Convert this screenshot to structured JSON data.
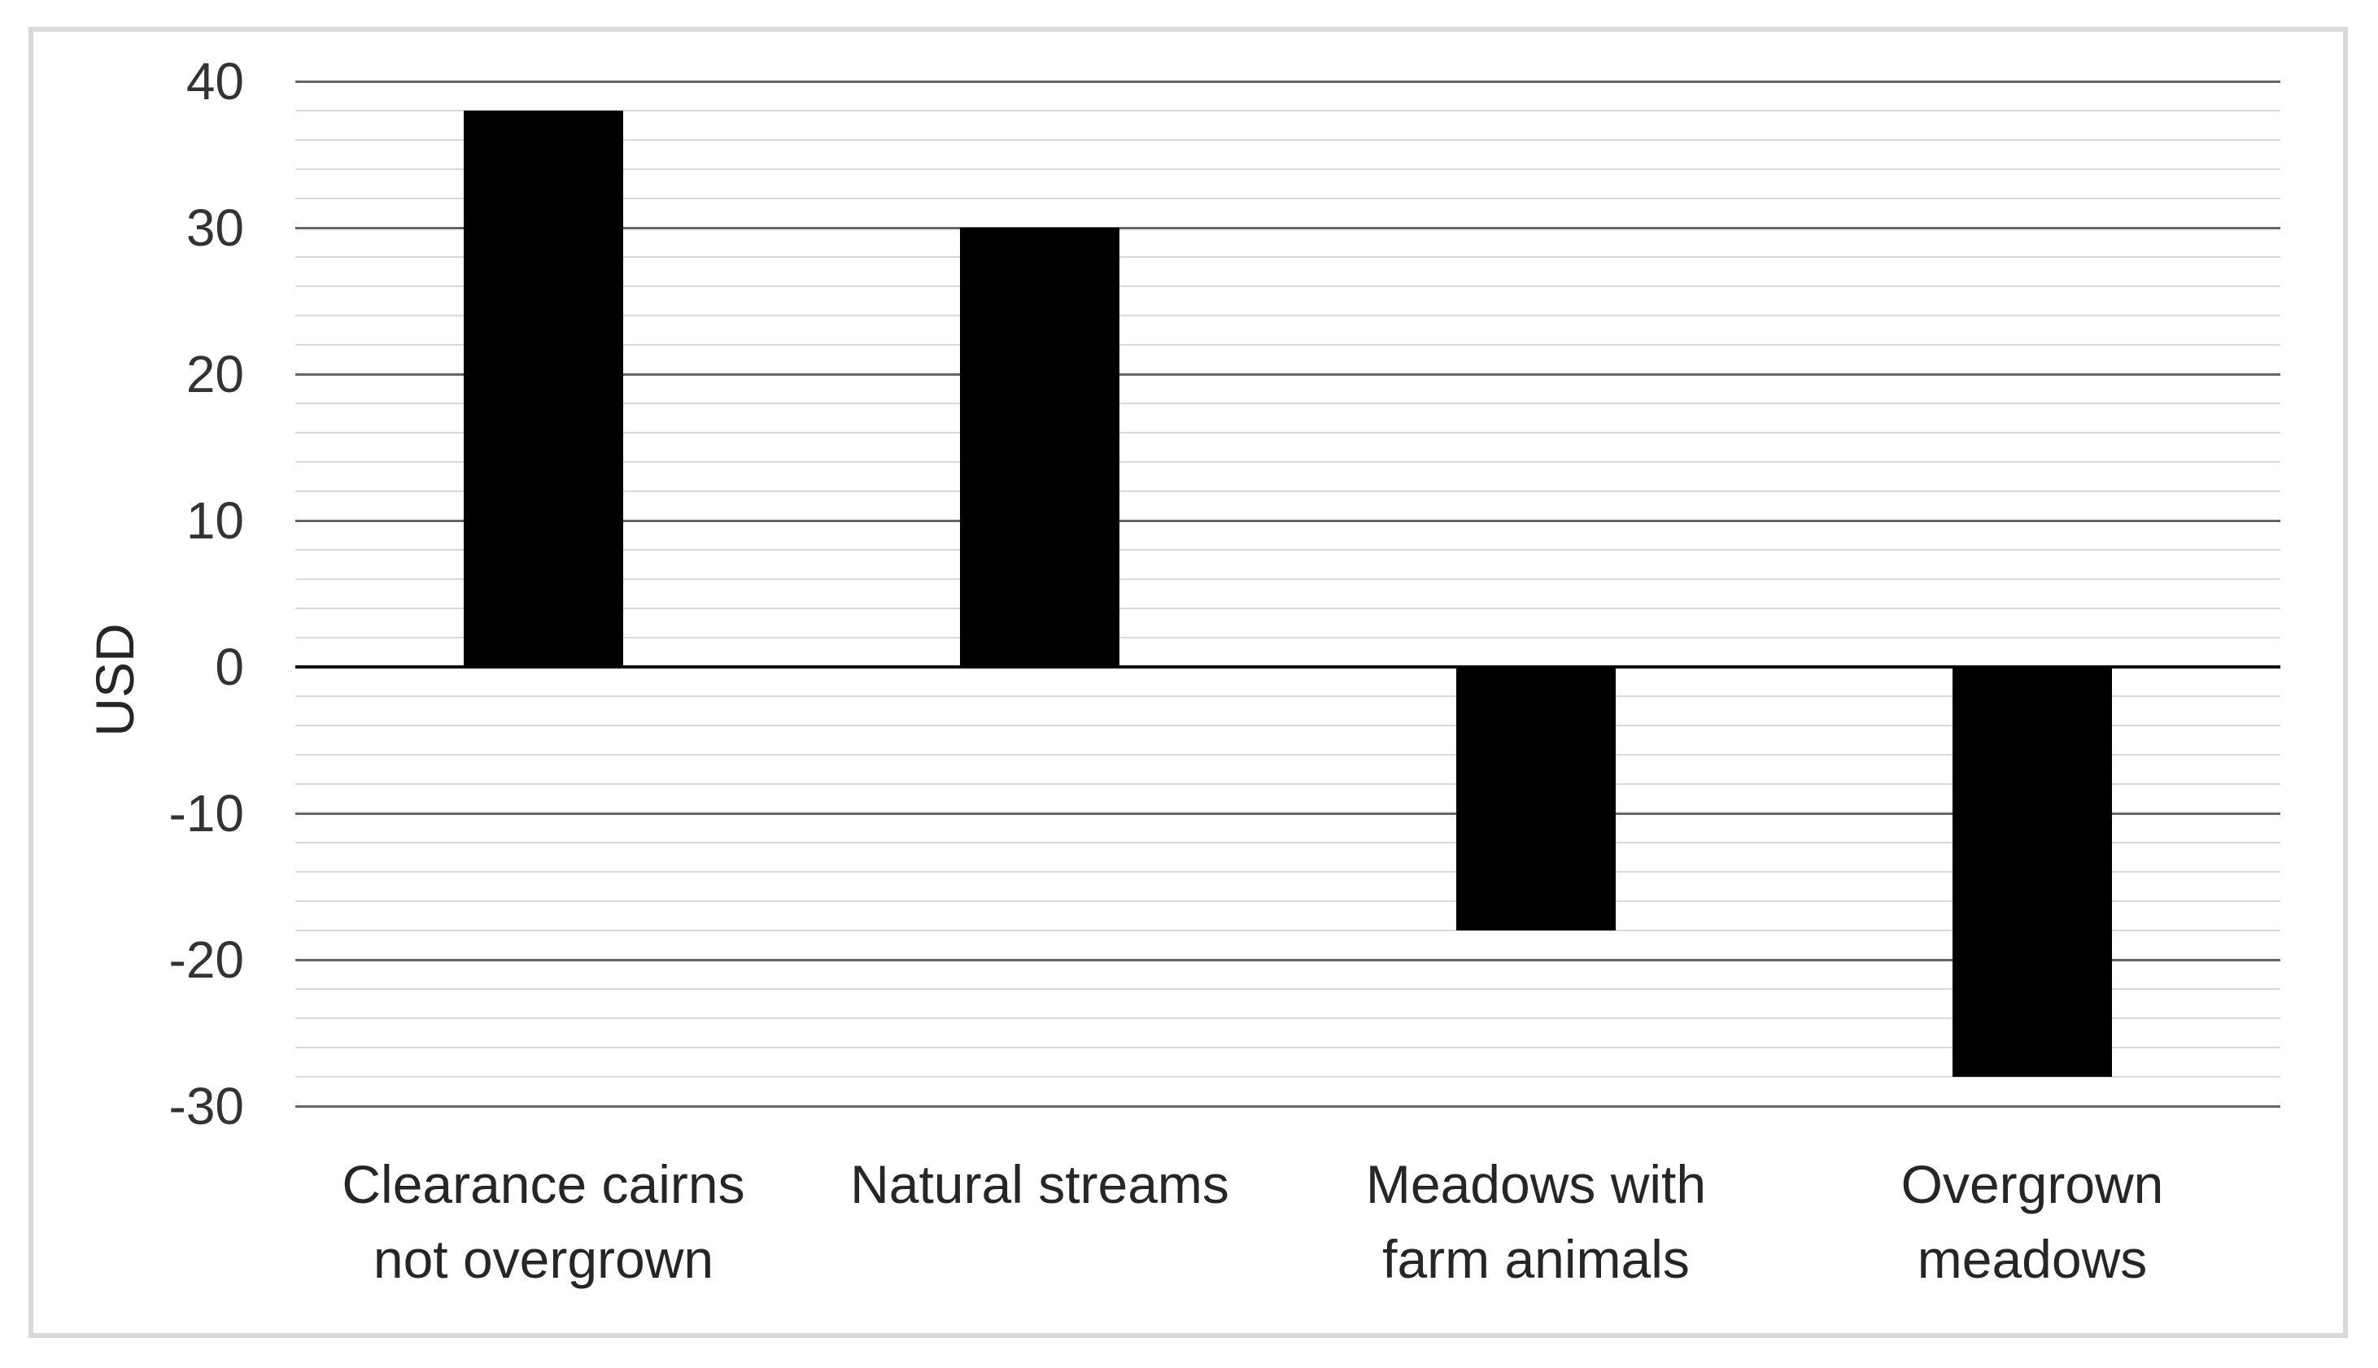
{
  "chart_data": {
    "type": "bar",
    "title": "",
    "ylabel": "USD",
    "xlabel": "",
    "legend": "none",
    "grid": "on",
    "categories": [
      {
        "label": "Clearance cairns not overgrown",
        "lines": [
          "Clearance cairns",
          "not overgrown"
        ]
      },
      {
        "label": "Natural streams",
        "lines": [
          "Natural streams"
        ]
      },
      {
        "label": "Meadows with farm animals",
        "lines": [
          "Meadows with",
          "farm animals"
        ]
      },
      {
        "label": "Overgrown meadows",
        "lines": [
          "Overgrown",
          "meadows"
        ]
      }
    ],
    "values": [
      38,
      30,
      -18,
      -28
    ],
    "ylim": [
      -30,
      40
    ],
    "ytick_interval": 10,
    "ytick_labels": [
      "40",
      "30",
      "20",
      "10",
      "0",
      "-10",
      "-20",
      "-30"
    ],
    "minor_gridline_interval": 2,
    "colors": {
      "bar": "#000000",
      "zero_line": "#111111",
      "major_gridline": "#666666",
      "minor_gridline": "#d9d9d9",
      "frame_border": "#d9d9d9",
      "tick_text": "#333333",
      "category_text": "#262626",
      "background": "#ffffff"
    }
  }
}
